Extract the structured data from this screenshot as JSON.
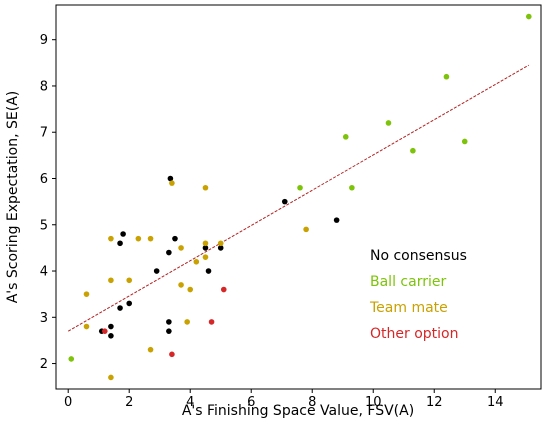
{
  "chart_data": {
    "type": "scatter",
    "xlabel": "A's Finishing Space Value,  FSV(A)",
    "ylabel": "A's Scoring Expectation,  SE(A)",
    "xlim": [
      -0.4,
      15.5
    ],
    "ylim": [
      1.45,
      9.75
    ],
    "xticks": [
      0,
      2,
      4,
      6,
      8,
      10,
      12,
      14
    ],
    "yticks": [
      2,
      3,
      4,
      5,
      6,
      7,
      8,
      9
    ],
    "grid": false,
    "legend_placement": "right",
    "trend_line": {
      "style": "dashed",
      "color": "#b22222",
      "x": [
        0.0,
        15.1
      ],
      "y": [
        2.7,
        8.45
      ]
    },
    "series": [
      {
        "name": "No consensus",
        "color": "#000000",
        "points": [
          [
            1.1,
            2.7
          ],
          [
            1.4,
            2.6
          ],
          [
            1.4,
            2.8
          ],
          [
            1.7,
            3.2
          ],
          [
            1.7,
            4.6
          ],
          [
            1.8,
            4.8
          ],
          [
            2.0,
            3.3
          ],
          [
            2.9,
            4.0
          ],
          [
            3.3,
            2.9
          ],
          [
            3.3,
            2.7
          ],
          [
            3.3,
            4.4
          ],
          [
            3.35,
            6.0
          ],
          [
            3.5,
            4.7
          ],
          [
            4.5,
            4.5
          ],
          [
            4.6,
            4.0
          ],
          [
            5.0,
            4.5
          ],
          [
            7.1,
            5.5
          ],
          [
            8.8,
            5.1
          ]
        ]
      },
      {
        "name": "Ball carrier",
        "color": "#7cc30a",
        "points": [
          [
            0.1,
            2.1
          ],
          [
            7.6,
            5.8
          ],
          [
            9.1,
            6.9
          ],
          [
            9.3,
            5.8
          ],
          [
            10.5,
            7.2
          ],
          [
            11.3,
            6.6
          ],
          [
            12.4,
            8.2
          ],
          [
            13.0,
            6.8
          ],
          [
            15.1,
            9.5
          ]
        ]
      },
      {
        "name": "Team mate",
        "color": "#c9a100",
        "points": [
          [
            0.6,
            3.5
          ],
          [
            0.6,
            2.8
          ],
          [
            1.4,
            3.8
          ],
          [
            1.4,
            4.7
          ],
          [
            1.4,
            1.7
          ],
          [
            2.0,
            3.8
          ],
          [
            2.3,
            4.7
          ],
          [
            2.7,
            4.7
          ],
          [
            2.7,
            2.3
          ],
          [
            3.4,
            5.9
          ],
          [
            3.7,
            4.5
          ],
          [
            3.7,
            3.7
          ],
          [
            3.9,
            2.9
          ],
          [
            4.0,
            3.6
          ],
          [
            4.2,
            4.2
          ],
          [
            4.5,
            4.3
          ],
          [
            4.5,
            4.6
          ],
          [
            4.5,
            5.8
          ],
          [
            5.0,
            4.6
          ],
          [
            7.8,
            4.9
          ]
        ]
      },
      {
        "name": "Other option",
        "color": "#d62728",
        "points": [
          [
            1.2,
            2.7
          ],
          [
            3.4,
            2.2
          ],
          [
            4.7,
            2.9
          ],
          [
            5.1,
            3.6
          ]
        ]
      }
    ]
  }
}
